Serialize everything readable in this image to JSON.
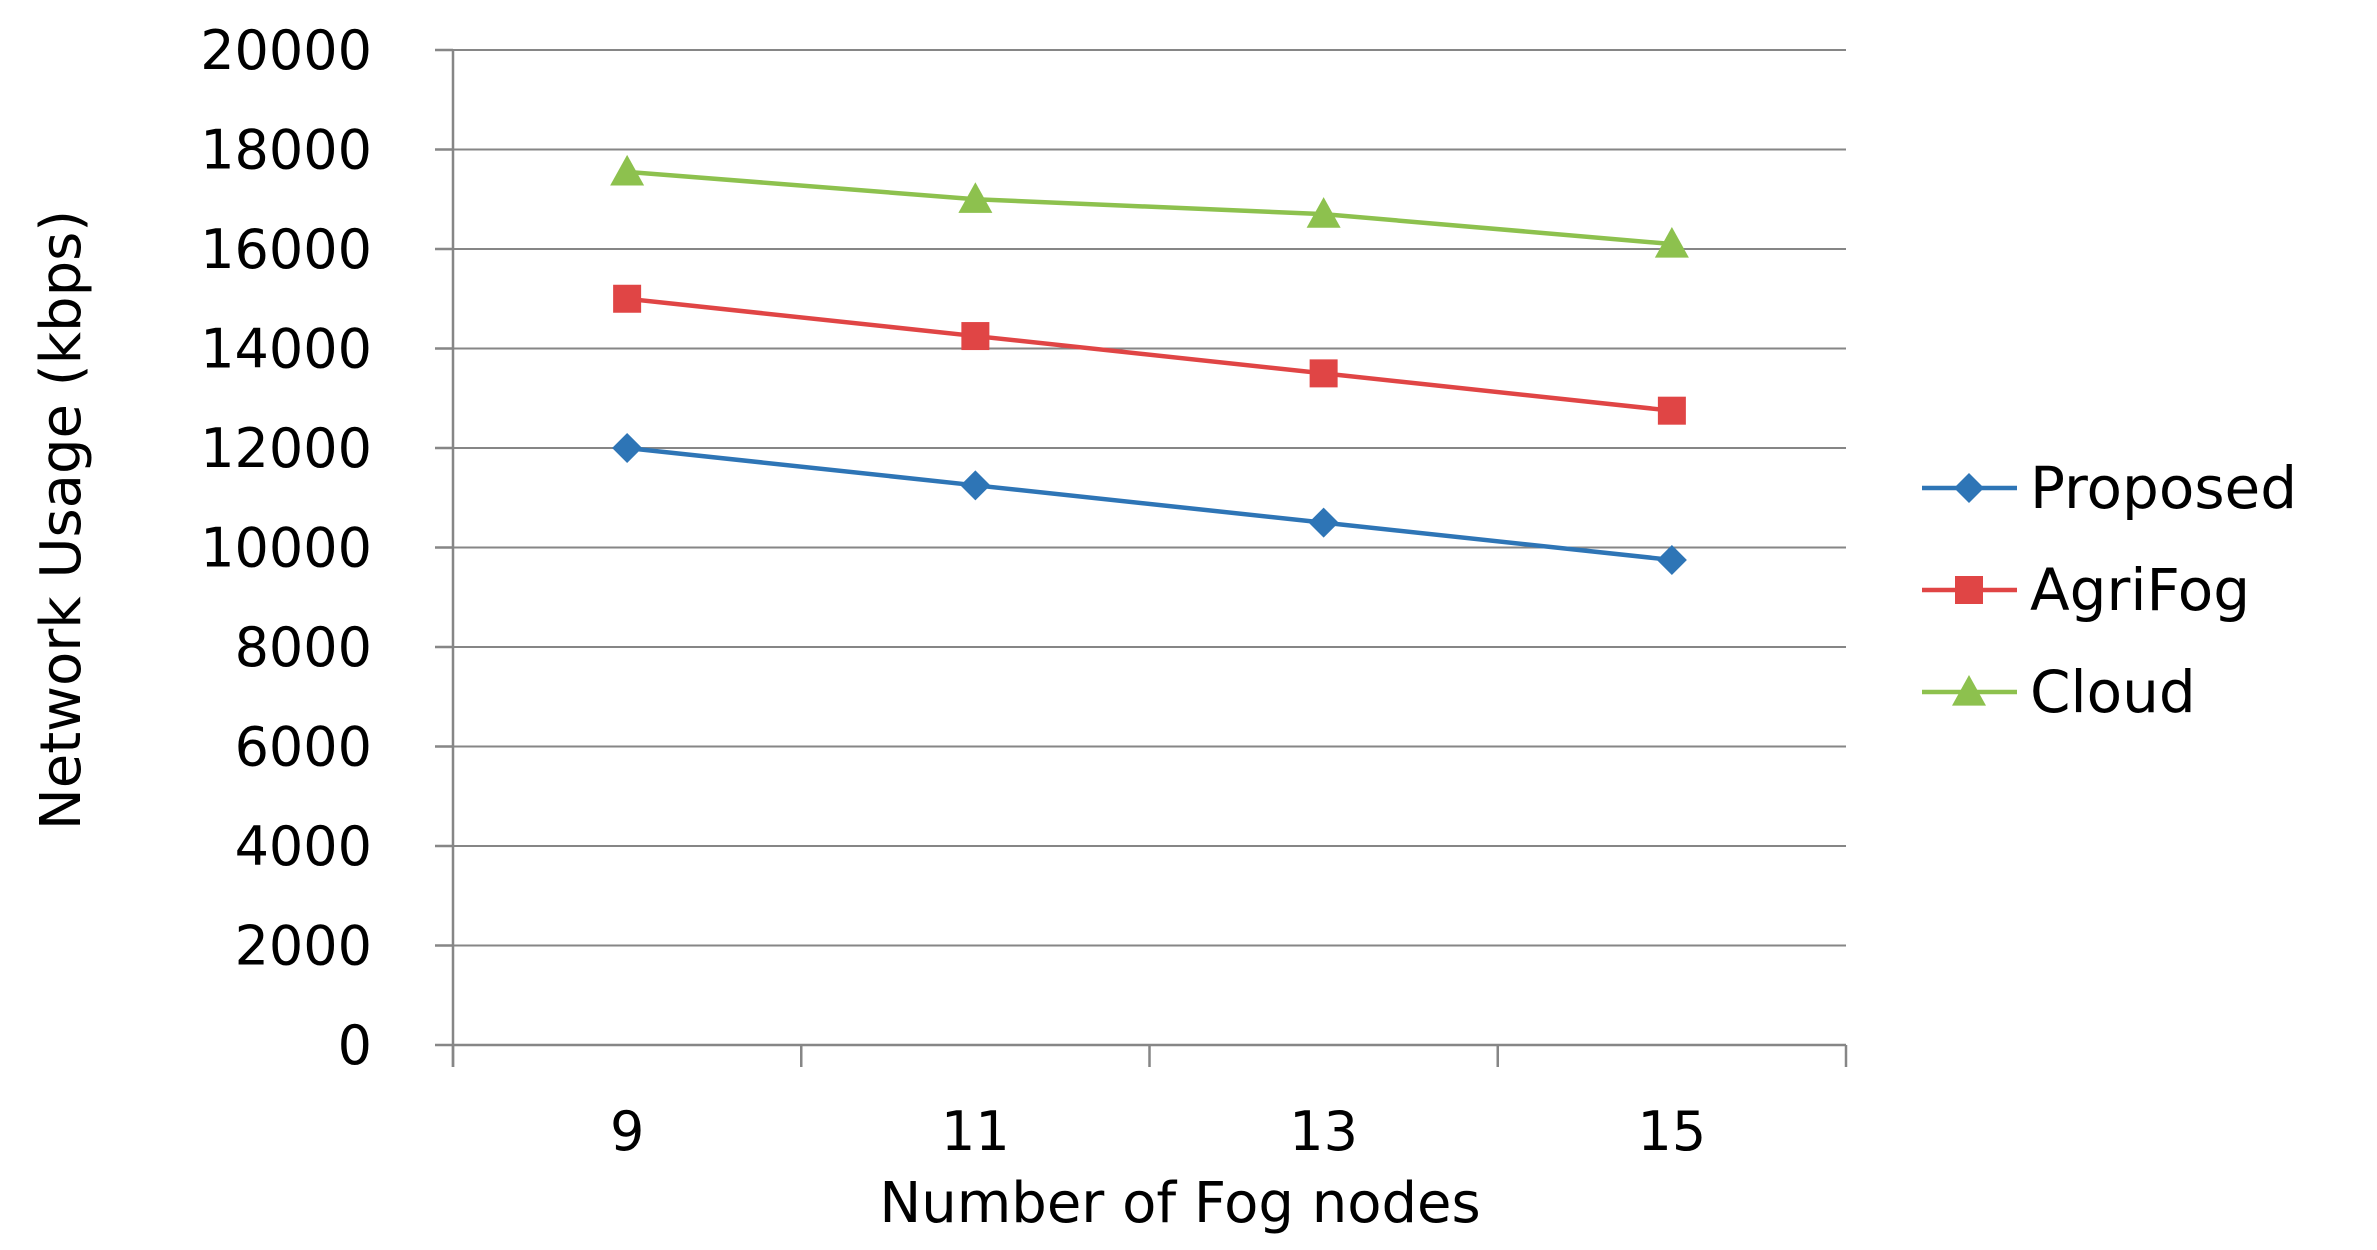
{
  "chart_data": {
    "type": "line",
    "title": "",
    "xlabel": "Number of Fog nodes",
    "ylabel": "Network Usage (kbps)",
    "categories": [
      "9",
      "11",
      "13",
      "15"
    ],
    "ylim": [
      0,
      20000
    ],
    "yticks": [
      0,
      2000,
      4000,
      6000,
      8000,
      10000,
      12000,
      14000,
      16000,
      18000,
      20000
    ],
    "grid": "horizontal",
    "legend_position": "right",
    "series": [
      {
        "name": "Proposed",
        "values": [
          12000,
          11250,
          10500,
          9750
        ],
        "color": "#2E75B6",
        "marker": "diamond"
      },
      {
        "name": "AgriFog",
        "values": [
          15000,
          14250,
          13500,
          12750
        ],
        "color": "#E04545",
        "marker": "square"
      },
      {
        "name": "Cloud",
        "values": [
          17550,
          17000,
          16700,
          16100
        ],
        "color": "#8DC14E",
        "marker": "triangle"
      }
    ]
  }
}
